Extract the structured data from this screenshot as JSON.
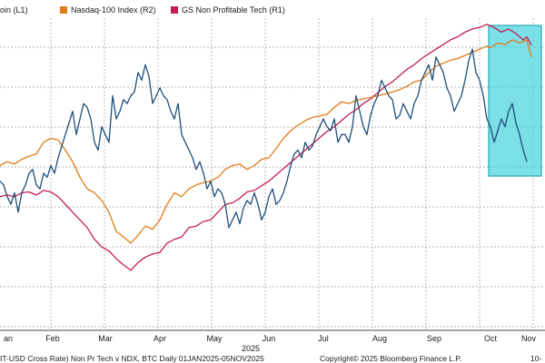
{
  "chart_data": {
    "type": "line",
    "legend": [
      "oin (L1)",
      "Nasdaq-100 Index (R2)",
      "GS Non Profitable Tech (R1)"
    ],
    "x_labels": [
      "an",
      "Feb",
      "Mar",
      "Apr",
      "May",
      "Jun",
      "Jul",
      "Aug",
      "Sep",
      "Oct",
      "Nov"
    ],
    "year_label": "2025",
    "footer_left": "IT-USD Cross Rate) Non Pr Tech v NDX, BTC Daily 01JAN2025-05NOV2025",
    "footer_right": "Copyright© 2025 Bloomberg Finance L.P.",
    "footer_tail": "10-",
    "grid": true,
    "colors": {
      "btc": "#1f4e79",
      "ndx": "#e07b1a",
      "gs": "#c21f4e",
      "highlight": "#4fd6e0"
    },
    "series": [
      {
        "key": "btc",
        "values": [
          [
            0,
            190
          ],
          [
            4,
            185
          ],
          [
            8,
            170
          ],
          [
            12,
            160
          ],
          [
            16,
            175
          ],
          [
            20,
            150
          ],
          [
            24,
            175
          ],
          [
            28,
            185
          ],
          [
            32,
            200
          ],
          [
            36,
            205
          ],
          [
            40,
            185
          ],
          [
            44,
            180
          ],
          [
            48,
            200
          ],
          [
            52,
            195
          ],
          [
            56,
            210
          ],
          [
            60,
            200
          ],
          [
            64,
            220
          ],
          [
            68,
            235
          ],
          [
            72,
            250
          ],
          [
            76,
            265
          ],
          [
            80,
            280
          ],
          [
            84,
            250
          ],
          [
            88,
            270
          ],
          [
            92,
            290
          ],
          [
            96,
            285
          ],
          [
            100,
            270
          ],
          [
            104,
            240
          ],
          [
            108,
            230
          ],
          [
            112,
            260
          ],
          [
            116,
            250
          ],
          [
            120,
            240
          ],
          [
            124,
            300
          ],
          [
            128,
            270
          ],
          [
            132,
            280
          ],
          [
            136,
            295
          ],
          [
            140,
            290
          ],
          [
            144,
            300
          ],
          [
            148,
            305
          ],
          [
            152,
            330
          ],
          [
            156,
            320
          ],
          [
            160,
            340
          ],
          [
            164,
            325
          ],
          [
            168,
            290
          ],
          [
            172,
            300
          ],
          [
            176,
            310
          ],
          [
            180,
            300
          ],
          [
            184,
            295
          ],
          [
            188,
            280
          ],
          [
            192,
            270
          ],
          [
            196,
            290
          ],
          [
            200,
            250
          ],
          [
            204,
            240
          ],
          [
            208,
            230
          ],
          [
            212,
            220
          ],
          [
            216,
            205
          ],
          [
            220,
            215
          ],
          [
            224,
            200
          ],
          [
            228,
            180
          ],
          [
            232,
            190
          ],
          [
            236,
            170
          ],
          [
            240,
            180
          ],
          [
            244,
            175
          ],
          [
            248,
            160
          ],
          [
            252,
            130
          ],
          [
            256,
            140
          ],
          [
            260,
            150
          ],
          [
            264,
            135
          ],
          [
            268,
            155
          ],
          [
            272,
            165
          ],
          [
            276,
            160
          ],
          [
            280,
            175
          ],
          [
            284,
            160
          ],
          [
            288,
            140
          ],
          [
            292,
            150
          ],
          [
            296,
            170
          ],
          [
            300,
            180
          ],
          [
            304,
            160
          ],
          [
            308,
            165
          ],
          [
            312,
            175
          ],
          [
            316,
            190
          ],
          [
            320,
            210
          ],
          [
            324,
            225
          ],
          [
            328,
            230
          ],
          [
            332,
            220
          ],
          [
            336,
            240
          ],
          [
            340,
            230
          ],
          [
            344,
            235
          ],
          [
            348,
            250
          ],
          [
            352,
            260
          ],
          [
            356,
            270
          ],
          [
            360,
            260
          ],
          [
            364,
            255
          ],
          [
            368,
            270
          ],
          [
            372,
            240
          ],
          [
            376,
            250
          ],
          [
            380,
            250
          ],
          [
            384,
            240
          ],
          [
            388,
            260
          ],
          [
            392,
            300
          ],
          [
            396,
            280
          ],
          [
            400,
            260
          ],
          [
            404,
            250
          ],
          [
            408,
            275
          ],
          [
            412,
            290
          ],
          [
            416,
            300
          ],
          [
            420,
            320
          ],
          [
            424,
            310
          ],
          [
            428,
            300
          ],
          [
            432,
            295
          ],
          [
            436,
            270
          ],
          [
            440,
            275
          ],
          [
            444,
            290
          ],
          [
            448,
            280
          ],
          [
            452,
            270
          ],
          [
            456,
            290
          ],
          [
            460,
            300
          ],
          [
            464,
            320
          ],
          [
            468,
            330
          ],
          [
            472,
            340
          ],
          [
            476,
            320
          ],
          [
            480,
            350
          ],
          [
            484,
            340
          ],
          [
            488,
            330
          ],
          [
            492,
            310
          ],
          [
            496,
            300
          ],
          [
            500,
            280
          ],
          [
            504,
            290
          ],
          [
            508,
            300
          ],
          [
            512,
            320
          ],
          [
            516,
            345
          ],
          [
            520,
            360
          ],
          [
            524,
            330
          ],
          [
            528,
            320
          ],
          [
            532,
            300
          ],
          [
            536,
            270
          ],
          [
            540,
            260
          ],
          [
            544,
            240
          ],
          [
            548,
            255
          ],
          [
            552,
            270
          ],
          [
            556,
            260
          ],
          [
            560,
            280
          ],
          [
            564,
            290
          ],
          [
            568,
            265
          ],
          [
            572,
            250
          ],
          [
            576,
            230
          ],
          [
            580,
            215
          ]
        ]
      },
      {
        "key": "ndx",
        "values": [
          [
            0,
            210
          ],
          [
            8,
            215
          ],
          [
            16,
            212
          ],
          [
            24,
            218
          ],
          [
            32,
            222
          ],
          [
            40,
            225
          ],
          [
            48,
            240
          ],
          [
            56,
            245
          ],
          [
            64,
            243
          ],
          [
            72,
            230
          ],
          [
            80,
            215
          ],
          [
            88,
            195
          ],
          [
            96,
            180
          ],
          [
            104,
            175
          ],
          [
            112,
            165
          ],
          [
            120,
            150
          ],
          [
            128,
            125
          ],
          [
            136,
            118
          ],
          [
            144,
            110
          ],
          [
            152,
            120
          ],
          [
            160,
            132
          ],
          [
            168,
            128
          ],
          [
            176,
            140
          ],
          [
            184,
            160
          ],
          [
            192,
            175
          ],
          [
            200,
            170
          ],
          [
            208,
            180
          ],
          [
            216,
            185
          ],
          [
            224,
            188
          ],
          [
            232,
            190
          ],
          [
            240,
            195
          ],
          [
            248,
            205
          ],
          [
            256,
            210
          ],
          [
            264,
            212
          ],
          [
            272,
            205
          ],
          [
            280,
            210
          ],
          [
            288,
            218
          ],
          [
            296,
            220
          ],
          [
            304,
            232
          ],
          [
            312,
            245
          ],
          [
            320,
            255
          ],
          [
            328,
            262
          ],
          [
            336,
            268
          ],
          [
            344,
            272
          ],
          [
            352,
            274
          ],
          [
            360,
            276
          ],
          [
            368,
            285
          ],
          [
            376,
            292
          ],
          [
            384,
            290
          ],
          [
            392,
            294
          ],
          [
            400,
            296
          ],
          [
            408,
            298
          ],
          [
            416,
            300
          ],
          [
            424,
            302
          ],
          [
            432,
            305
          ],
          [
            440,
            308
          ],
          [
            448,
            312
          ],
          [
            456,
            318
          ],
          [
            464,
            320
          ],
          [
            472,
            330
          ],
          [
            480,
            338
          ],
          [
            488,
            342
          ],
          [
            496,
            346
          ],
          [
            504,
            348
          ],
          [
            512,
            352
          ],
          [
            520,
            356
          ],
          [
            528,
            360
          ],
          [
            536,
            364
          ],
          [
            540,
            362
          ],
          [
            548,
            368
          ],
          [
            556,
            366
          ],
          [
            564,
            372
          ],
          [
            572,
            368
          ],
          [
            580,
            372
          ],
          [
            585,
            350
          ]
        ]
      },
      {
        "key": "gs",
        "values": [
          [
            0,
            170
          ],
          [
            8,
            172
          ],
          [
            16,
            170
          ],
          [
            24,
            175
          ],
          [
            32,
            176
          ],
          [
            40,
            172
          ],
          [
            48,
            178
          ],
          [
            56,
            176
          ],
          [
            64,
            170
          ],
          [
            72,
            160
          ],
          [
            80,
            150
          ],
          [
            88,
            140
          ],
          [
            96,
            130
          ],
          [
            104,
            115
          ],
          [
            112,
            105
          ],
          [
            120,
            100
          ],
          [
            128,
            90
          ],
          [
            136,
            82
          ],
          [
            144,
            75
          ],
          [
            152,
            85
          ],
          [
            160,
            92
          ],
          [
            168,
            96
          ],
          [
            176,
            98
          ],
          [
            184,
            110
          ],
          [
            192,
            115
          ],
          [
            200,
            118
          ],
          [
            208,
            130
          ],
          [
            216,
            132
          ],
          [
            224,
            138
          ],
          [
            232,
            140
          ],
          [
            240,
            150
          ],
          [
            248,
            160
          ],
          [
            256,
            162
          ],
          [
            264,
            168
          ],
          [
            272,
            176
          ],
          [
            280,
            178
          ],
          [
            288,
            184
          ],
          [
            296,
            190
          ],
          [
            304,
            198
          ],
          [
            312,
            206
          ],
          [
            320,
            214
          ],
          [
            328,
            222
          ],
          [
            336,
            230
          ],
          [
            344,
            238
          ],
          [
            352,
            246
          ],
          [
            360,
            254
          ],
          [
            368,
            260
          ],
          [
            376,
            268
          ],
          [
            384,
            276
          ],
          [
            392,
            282
          ],
          [
            400,
            290
          ],
          [
            408,
            296
          ],
          [
            416,
            304
          ],
          [
            424,
            312
          ],
          [
            432,
            318
          ],
          [
            440,
            326
          ],
          [
            448,
            334
          ],
          [
            456,
            340
          ],
          [
            464,
            348
          ],
          [
            472,
            354
          ],
          [
            480,
            360
          ],
          [
            488,
            366
          ],
          [
            496,
            372
          ],
          [
            504,
            376
          ],
          [
            512,
            382
          ],
          [
            520,
            386
          ],
          [
            528,
            388
          ],
          [
            536,
            392
          ],
          [
            544,
            388
          ],
          [
            552,
            382
          ],
          [
            560,
            386
          ],
          [
            568,
            380
          ],
          [
            576,
            372
          ],
          [
            580,
            376
          ],
          [
            585,
            365
          ]
        ]
      }
    ]
  }
}
